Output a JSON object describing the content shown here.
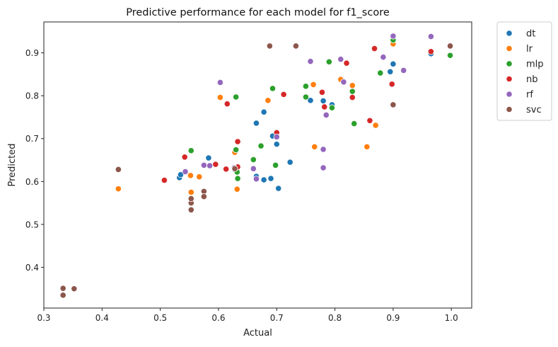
{
  "chart_data": {
    "type": "scatter",
    "title": "Predictive performance for each model for f1_score",
    "xlabel": "Actual",
    "ylabel": "Predicted",
    "xlim": [
      0.3,
      1.035
    ],
    "ylim": [
      0.305,
      0.972
    ],
    "xticks": [
      0.3,
      0.4,
      0.5,
      0.6,
      0.7,
      0.8,
      0.9,
      1.0
    ],
    "xtick_labels": [
      "0.3",
      "0.4",
      "0.5",
      "0.6",
      "0.7",
      "0.8",
      "0.9",
      "1.0"
    ],
    "yticks": [
      0.4,
      0.5,
      0.6,
      0.7,
      0.8,
      0.9
    ],
    "ytick_labels": [
      "0.4",
      "0.5",
      "0.6",
      "0.7",
      "0.8",
      "0.9"
    ],
    "grid": false,
    "legend_position": "outside-top-right",
    "series": [
      {
        "name": "dt",
        "color": "#1f77b4",
        "points": [
          [
            0.533,
            0.609
          ],
          [
            0.535,
            0.616
          ],
          [
            0.583,
            0.655
          ],
          [
            0.628,
            0.628
          ],
          [
            0.665,
            0.736
          ],
          [
            0.665,
            0.612
          ],
          [
            0.678,
            0.762
          ],
          [
            0.678,
            0.604
          ],
          [
            0.69,
            0.607
          ],
          [
            0.693,
            0.706
          ],
          [
            0.7,
            0.687
          ],
          [
            0.703,
            0.584
          ],
          [
            0.723,
            0.645
          ],
          [
            0.758,
            0.789
          ],
          [
            0.78,
            0.788
          ],
          [
            0.795,
            0.779
          ],
          [
            0.895,
            0.856
          ],
          [
            0.9,
            0.874
          ],
          [
            0.965,
            0.898
          ]
        ]
      },
      {
        "name": "lr",
        "color": "#ff7f0e",
        "points": [
          [
            0.428,
            0.583
          ],
          [
            0.552,
            0.614
          ],
          [
            0.553,
            0.575
          ],
          [
            0.567,
            0.611
          ],
          [
            0.603,
            0.796
          ],
          [
            0.628,
            0.668
          ],
          [
            0.632,
            0.582
          ],
          [
            0.685,
            0.789
          ],
          [
            0.763,
            0.826
          ],
          [
            0.765,
            0.681
          ],
          [
            0.81,
            0.838
          ],
          [
            0.83,
            0.824
          ],
          [
            0.855,
            0.681
          ],
          [
            0.87,
            0.731
          ],
          [
            0.9,
            0.921
          ],
          [
            0.965,
            0.903
          ]
        ]
      },
      {
        "name": "mlp",
        "color": "#2ca02c",
        "points": [
          [
            0.553,
            0.672
          ],
          [
            0.63,
            0.674
          ],
          [
            0.63,
            0.797
          ],
          [
            0.632,
            0.622
          ],
          [
            0.633,
            0.607
          ],
          [
            0.66,
            0.651
          ],
          [
            0.673,
            0.683
          ],
          [
            0.693,
            0.817
          ],
          [
            0.698,
            0.638
          ],
          [
            0.75,
            0.822
          ],
          [
            0.75,
            0.797
          ],
          [
            0.79,
            0.879
          ],
          [
            0.795,
            0.772
          ],
          [
            0.83,
            0.81
          ],
          [
            0.833,
            0.735
          ],
          [
            0.878,
            0.853
          ],
          [
            0.9,
            0.93
          ],
          [
            0.998,
            0.894
          ]
        ]
      },
      {
        "name": "nb",
        "color": "#d62728",
        "points": [
          [
            0.507,
            0.603
          ],
          [
            0.542,
            0.657
          ],
          [
            0.595,
            0.64
          ],
          [
            0.613,
            0.629
          ],
          [
            0.615,
            0.781
          ],
          [
            0.633,
            0.693
          ],
          [
            0.633,
            0.634
          ],
          [
            0.7,
            0.714
          ],
          [
            0.712,
            0.803
          ],
          [
            0.778,
            0.808
          ],
          [
            0.782,
            0.774
          ],
          [
            0.82,
            0.876
          ],
          [
            0.83,
            0.796
          ],
          [
            0.86,
            0.742
          ],
          [
            0.868,
            0.91
          ],
          [
            0.898,
            0.827
          ],
          [
            0.965,
            0.903
          ]
        ]
      },
      {
        "name": "rf",
        "color": "#9467bd",
        "points": [
          [
            0.543,
            0.623
          ],
          [
            0.575,
            0.638
          ],
          [
            0.585,
            0.637
          ],
          [
            0.603,
            0.831
          ],
          [
            0.627,
            0.632
          ],
          [
            0.66,
            0.63
          ],
          [
            0.665,
            0.606
          ],
          [
            0.7,
            0.704
          ],
          [
            0.758,
            0.88
          ],
          [
            0.78,
            0.675
          ],
          [
            0.78,
            0.632
          ],
          [
            0.785,
            0.755
          ],
          [
            0.81,
            0.885
          ],
          [
            0.815,
            0.832
          ],
          [
            0.883,
            0.89
          ],
          [
            0.9,
            0.939
          ],
          [
            0.918,
            0.859
          ],
          [
            0.965,
            0.938
          ]
        ]
      },
      {
        "name": "svc",
        "color": "#8c564b",
        "points": [
          [
            0.333,
            0.335
          ],
          [
            0.333,
            0.351
          ],
          [
            0.352,
            0.35
          ],
          [
            0.428,
            0.628
          ],
          [
            0.553,
            0.534
          ],
          [
            0.553,
            0.55
          ],
          [
            0.553,
            0.56
          ],
          [
            0.575,
            0.577
          ],
          [
            0.575,
            0.565
          ],
          [
            0.628,
            0.63
          ],
          [
            0.688,
            0.916
          ],
          [
            0.733,
            0.916
          ],
          [
            0.9,
            0.779
          ],
          [
            0.998,
            0.916
          ]
        ]
      }
    ]
  }
}
